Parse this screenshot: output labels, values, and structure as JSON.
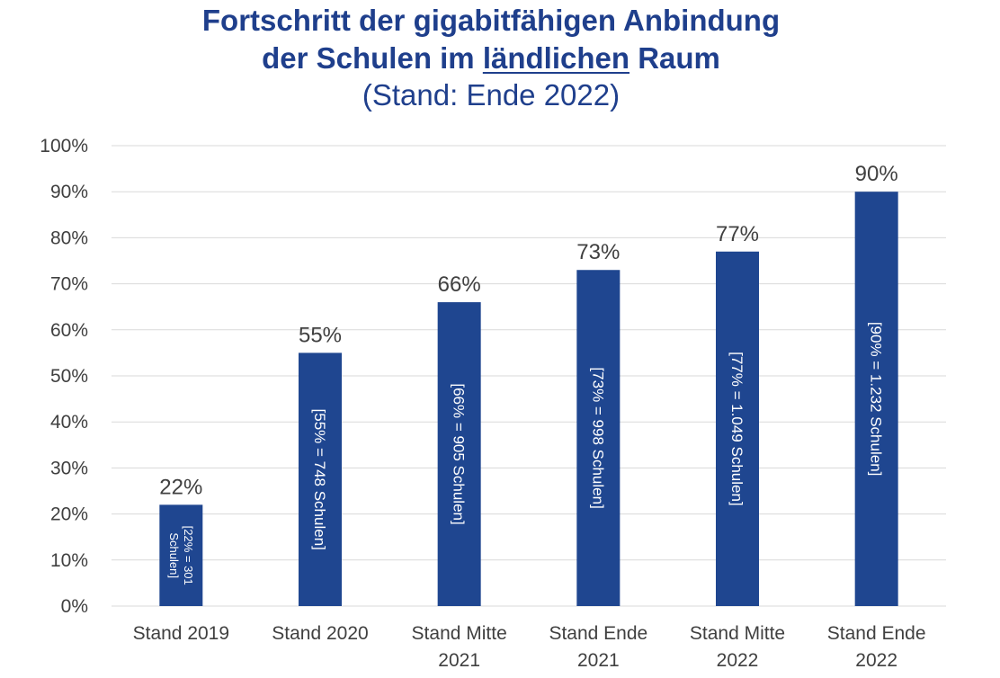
{
  "chart_data": {
    "type": "bar",
    "title_prefix": "Fortschritt der gigabitfähigen Anbindung",
    "title_line2_pre": "der Schulen im ",
    "title_emphasis": "ländlichen",
    "title_line2_post": " Raum",
    "subtitle": "(Stand: Ende 2022)",
    "categories": [
      [
        "Stand 2019"
      ],
      [
        "Stand 2020"
      ],
      [
        "Stand Mitte",
        "2021"
      ],
      [
        "Stand Ende",
        "2021"
      ],
      [
        "Stand Mitte",
        "2022"
      ],
      [
        "Stand Ende",
        "2022"
      ]
    ],
    "values": [
      22,
      55,
      66,
      73,
      77,
      90
    ],
    "value_labels": [
      "22%",
      "55%",
      "66%",
      "73%",
      "77%",
      "90%"
    ],
    "bar_labels": [
      [
        "[22% = 301",
        "Schulen]"
      ],
      [
        "[55% = 748 Schulen]"
      ],
      [
        "[66% = 905 Schulen]"
      ],
      [
        "[73% = 998 Schulen]"
      ],
      [
        "[77% = 1.049 Schulen]"
      ],
      [
        "[90% = 1.232 Schulen]"
      ]
    ],
    "y_ticks": [
      "0%",
      "10%",
      "20%",
      "30%",
      "40%",
      "50%",
      "60%",
      "70%",
      "80%",
      "90%",
      "100%"
    ],
    "ylim": [
      0,
      100
    ],
    "grid": true,
    "bar_color": "#1f4690",
    "grid_color": "#d9d9d9"
  }
}
